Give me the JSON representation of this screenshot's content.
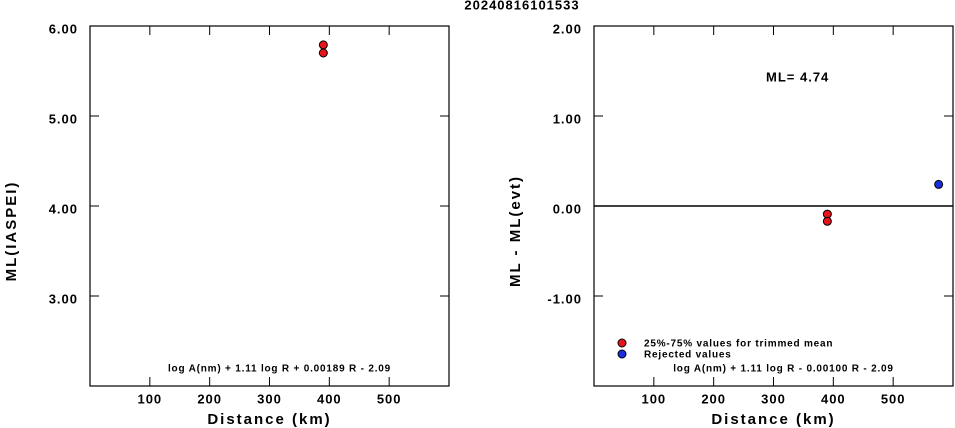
{
  "title": "20240816101533",
  "chart_data": [
    {
      "type": "scatter",
      "xlabel": "Distance (km)",
      "ylabel": "ML(IASPEI)",
      "formula": "log A(nm) + 1.11 log R + 0.00189 R - 2.09",
      "xlim": [
        0,
        600
      ],
      "xticks": [
        100,
        200,
        300,
        400,
        500
      ],
      "ylim": [
        2,
        6
      ],
      "yticks": [
        {
          "value": 3,
          "label": "3.00"
        },
        {
          "value": 4,
          "label": "4.00"
        },
        {
          "value": 5,
          "label": "5.00"
        },
        {
          "value": 6,
          "label": "6.00"
        }
      ],
      "series": [
        {
          "color": "#e8141b",
          "x": [
            390,
            390
          ],
          "values": [
            5.79,
            5.7
          ]
        }
      ]
    },
    {
      "type": "scatter",
      "xlabel": "Distance (km)",
      "ylabel": "ML - ML(evt)",
      "formula": "log A(nm) + 1.11 log R - 0.00100 R - 2.09",
      "annotation": "ML= 4.74",
      "hline": 0,
      "xlim": [
        0,
        600
      ],
      "xticks": [
        100,
        200,
        300,
        400,
        500
      ],
      "ylim": [
        -2,
        2
      ],
      "yticks": [
        {
          "value": -1,
          "label": "-1.00"
        },
        {
          "value": 0,
          "label": "0.00"
        },
        {
          "value": 1,
          "label": "1.00"
        },
        {
          "value": 2,
          "label": "2.00"
        }
      ],
      "series": [
        {
          "name": "25%-75% values for trimmed mean",
          "color": "#e8141b",
          "x": [
            390,
            390
          ],
          "values": [
            -0.09,
            -0.17
          ]
        },
        {
          "name": "Rejected values",
          "color": "#1a2ee0",
          "x": [
            576
          ],
          "values": [
            0.24
          ]
        }
      ]
    }
  ]
}
